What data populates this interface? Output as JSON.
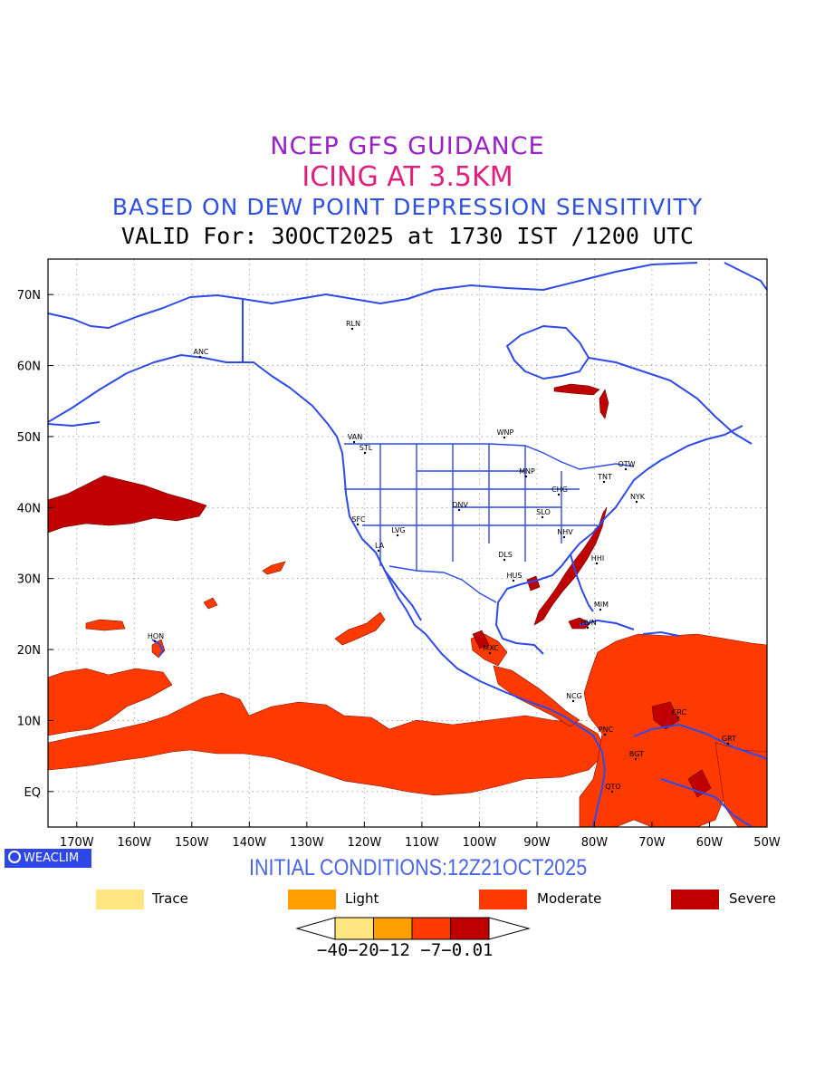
{
  "header": {
    "line1": "NCEP GFS GUIDANCE",
    "line2": "ICING AT 3.5KM",
    "line3": "BASED ON DEW POINT DEPRESSION SENSITIVITY",
    "line4": "VALID For: 30OCT2025 at 1730 IST /1200 UTC"
  },
  "axes": {
    "lat_ticks": [
      "70N",
      "60N",
      "50N",
      "40N",
      "30N",
      "20N",
      "10N",
      "EQ"
    ],
    "lon_ticks": [
      "170W",
      "160W",
      "150W",
      "140W",
      "130W",
      "120W",
      "110W",
      "100W",
      "90W",
      "80W",
      "70W",
      "60W",
      "50W"
    ],
    "lat_range": [
      -5,
      75
    ],
    "lon_range": [
      -175,
      -50
    ]
  },
  "stations": [
    "ANC",
    "HON",
    "VAN",
    "STL",
    "SFC",
    "LVG",
    "LA",
    "DNV",
    "WNP",
    "MNP",
    "CHG",
    "SLO",
    "DLS",
    "HUS",
    "NHV",
    "OTW",
    "TNT",
    "NYK",
    "HHI",
    "MIM",
    "HVN",
    "MXC",
    "NCG",
    "PNC",
    "BGT",
    "QTO",
    "CRC",
    "GRT",
    "RLN"
  ],
  "badge": {
    "label": "WEACLIM",
    "icon": "circle-logo-icon"
  },
  "initial_conditions": "INITIAL CONDITIONS:12Z21OCT2025",
  "legend": [
    {
      "label": "Trace",
      "color": "#ffe680"
    },
    {
      "label": "Light",
      "color": "#ff9f00"
    },
    {
      "label": "Moderate",
      "color": "#ff3a00"
    },
    {
      "label": "Severe",
      "color": "#c00000"
    }
  ],
  "colorbar": {
    "labels": "−40−20−12 −7−0.01",
    "colors": [
      "#ffe680",
      "#ff9f00",
      "#ff3a00",
      "#c00000"
    ]
  },
  "colors": {
    "coast": "#2e4ae8",
    "moderate": "#ff3a00",
    "severe": "#c00000",
    "grid": "#999999"
  }
}
